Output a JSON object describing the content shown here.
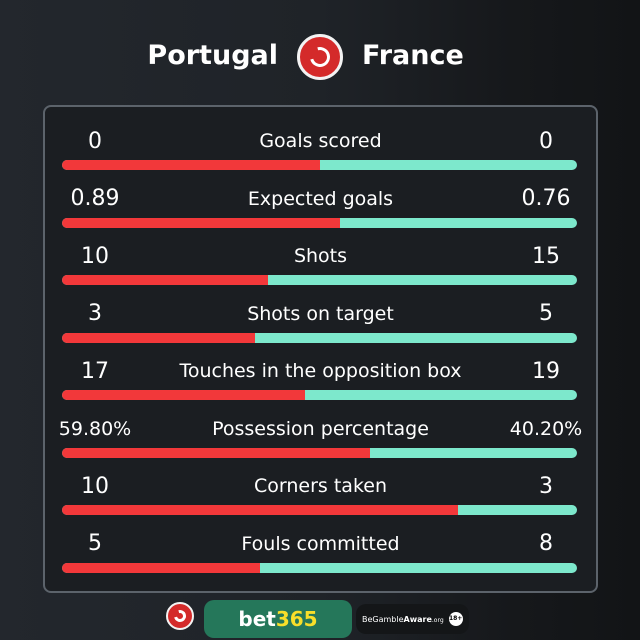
{
  "header": {
    "home_team": "Portugal",
    "away_team": "France",
    "logo": "yin-yang-red-badge"
  },
  "colors": {
    "home": "#f2383a",
    "away": "#7de8cc",
    "bet365_green": "#25775a",
    "bet365_yellow": "#f8df2a"
  },
  "stats": [
    {
      "label": "Goals scored",
      "home": "0",
      "away": "0",
      "home_share": 0.5
    },
    {
      "label": "Expected goals",
      "home": "0.89",
      "away": "0.76",
      "home_share": 0.539
    },
    {
      "label": "Shots",
      "home": "10",
      "away": "15",
      "home_share": 0.4
    },
    {
      "label": "Shots on target",
      "home": "3",
      "away": "5",
      "home_share": 0.375
    },
    {
      "label": "Touches in the opposition box",
      "home": "17",
      "away": "19",
      "home_share": 0.472
    },
    {
      "label": "Possession percentage",
      "home": "59.80%",
      "away": "40.20%",
      "home_share": 0.598
    },
    {
      "label": "Corners taken",
      "home": "10",
      "away": "3",
      "home_share": 0.769
    },
    {
      "label": "Fouls committed",
      "home": "5",
      "away": "8",
      "home_share": 0.385
    }
  ],
  "footer": {
    "sponsor_a": "bet",
    "sponsor_b": "365",
    "gamble_aware_a": "BeGamble",
    "gamble_aware_b": "Aware",
    "gamble_aware_c": ".org",
    "age": "18+"
  }
}
